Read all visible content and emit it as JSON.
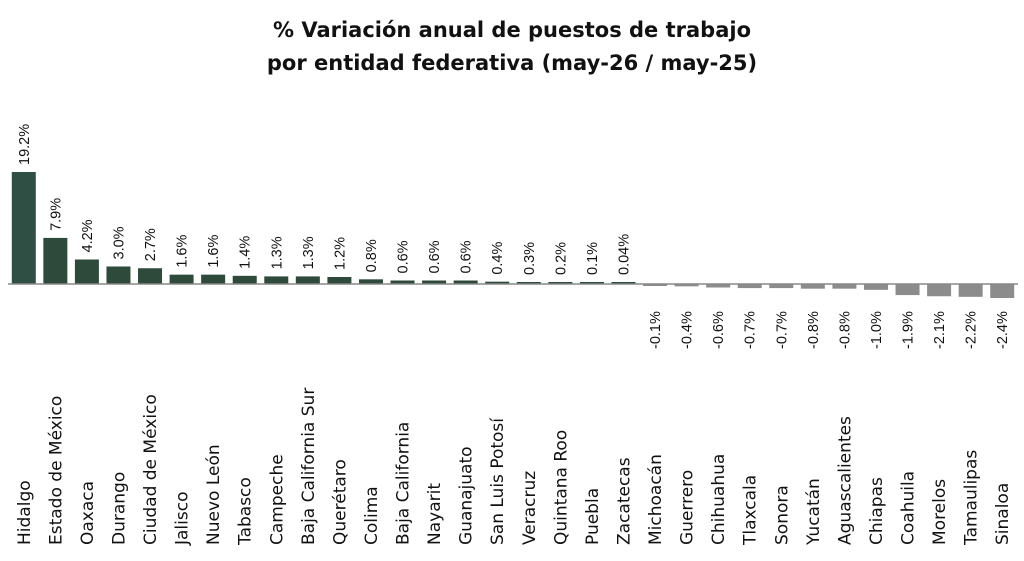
{
  "chart_data": {
    "type": "bar",
    "title": [
      "% Variación anual de puestos de trabajo",
      "por entidad federativa (may-26 / may-25)"
    ],
    "xlabel": "",
    "ylabel": "",
    "ylim": [
      -2.4,
      19.2
    ],
    "grid": false,
    "legend": "none",
    "colors": {
      "positive": "#2d4a3a",
      "first_bar": "#2f4f44",
      "negative": "#8c8c8c",
      "axis": "#888888",
      "text": "#111111"
    },
    "categories": [
      "Hidalgo",
      "Estado de México",
      "Oaxaca",
      "Durango",
      "Ciudad de México",
      "Jalisco",
      "Nuevo León",
      "Tabasco",
      "Campeche",
      "Baja California Sur",
      "Querétaro",
      "Colima",
      "Baja California",
      "Nayarit",
      "Guanajuato",
      "San Luis Potosí",
      "Veracruz",
      "Quintana Roo",
      "Puebla",
      "Zacatecas",
      "Michoacán",
      "Guerrero",
      "Chihuahua",
      "Tlaxcala",
      "Sonora",
      "Yucatán",
      "Aguascalientes",
      "Chiapas",
      "Coahuila",
      "Morelos",
      "Tamaulipas",
      "Sinaloa"
    ],
    "values": [
      19.2,
      7.9,
      4.2,
      3.0,
      2.7,
      1.6,
      1.6,
      1.4,
      1.3,
      1.3,
      1.2,
      0.8,
      0.6,
      0.6,
      0.6,
      0.4,
      0.3,
      0.2,
      0.1,
      0.04,
      -0.1,
      -0.4,
      -0.6,
      -0.7,
      -0.7,
      -0.8,
      -0.8,
      -1.0,
      -1.9,
      -2.1,
      -2.2,
      -2.4
    ],
    "data_labels": [
      "19.2%",
      "7.9%",
      "4.2%",
      "3.0%",
      "2.7%",
      "1.6%",
      "1.6%",
      "1.4%",
      "1.3%",
      "1.3%",
      "1.2%",
      "0.8%",
      "0.6%",
      "0.6%",
      "0.6%",
      "0.4%",
      "0.3%",
      "0.2%",
      "0.1%",
      "0.04%",
      "-0.1%",
      "-0.4%",
      "-0.6%",
      "-0.7%",
      "-0.7%",
      "-0.8%",
      "-0.8%",
      "-1.0%",
      "-1.9%",
      "-2.1%",
      "-2.2%",
      "-2.4%"
    ]
  }
}
